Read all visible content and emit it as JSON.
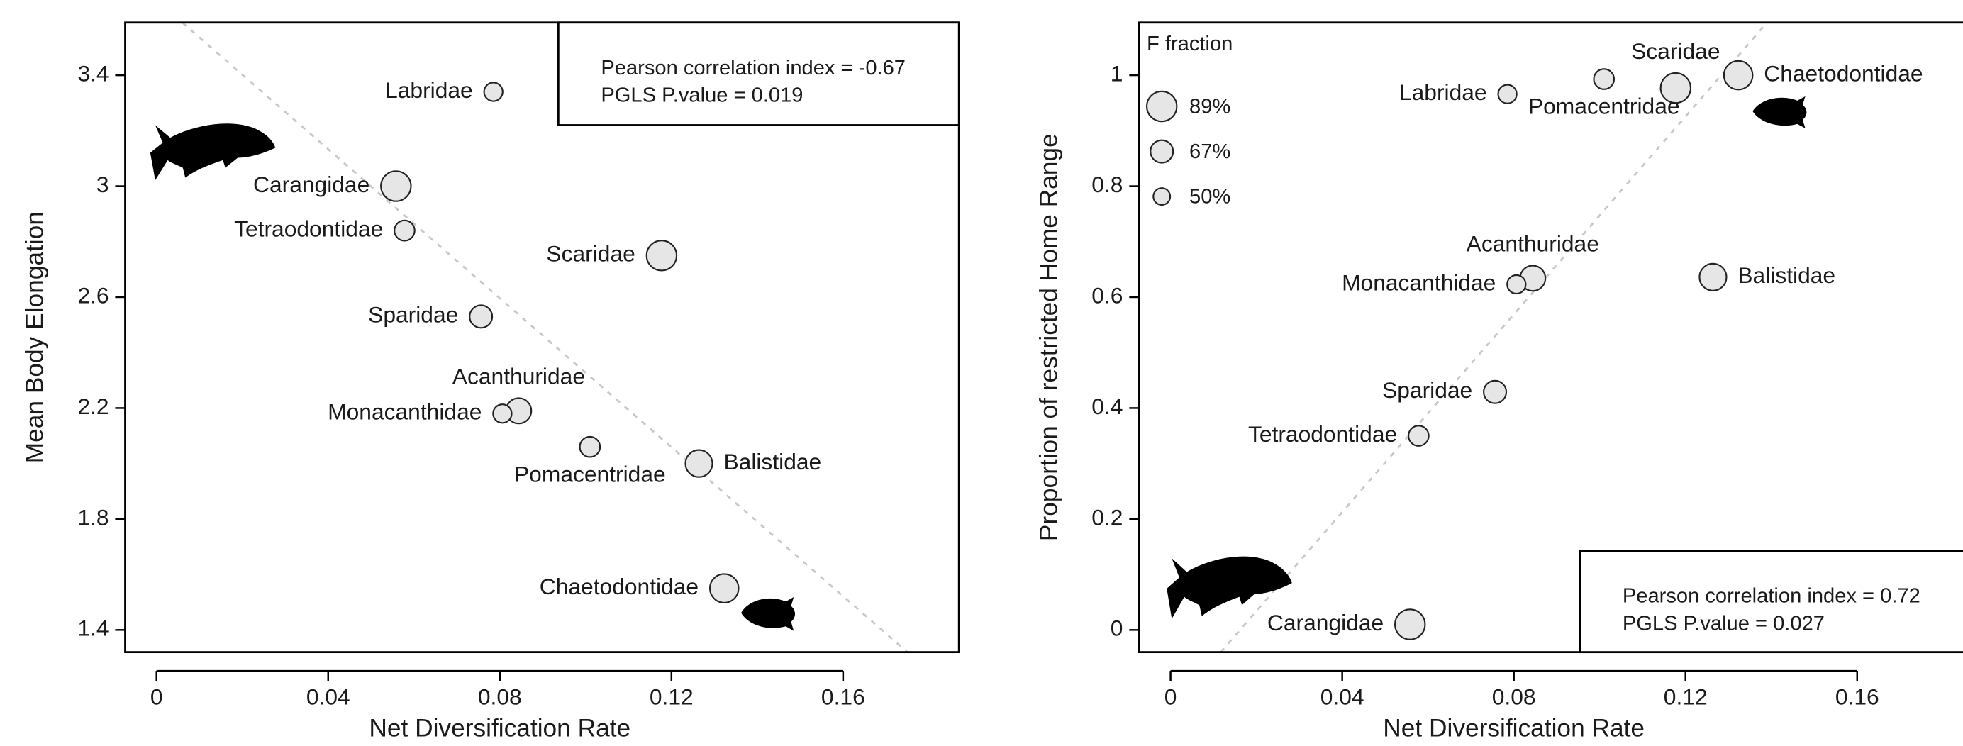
{
  "chart_data": [
    {
      "type": "scatter",
      "x_label": "Net Diversification Rate",
      "y_label": "Mean Body Elongation",
      "annotation": [
        "Pearson correlation index = -0.67",
        "PGLS P.value = 0.019"
      ],
      "categories": [
        "Labridae",
        "Carangidae",
        "Tetraodontidae",
        "Scaridae",
        "Sparidae",
        "Acanthuridae",
        "Monacanthidae",
        "Pomacentridae",
        "Balistidae",
        "Chaetodontidae"
      ],
      "x": [
        0.0785,
        0.0558,
        0.0578,
        0.1177,
        0.0756,
        0.0844,
        0.0806,
        0.101,
        0.1264,
        0.1323
      ],
      "values": [
        3.34,
        3.0,
        2.84,
        2.75,
        2.53,
        2.19,
        2.18,
        2.06,
        2.0,
        1.55
      ],
      "sizes": [
        55,
        89,
        60,
        89,
        67,
        75,
        55,
        60,
        80,
        85
      ],
      "trend_line": {
        "x": [
          0.006,
          0.175
        ],
        "y": [
          3.59,
          1.32
        ]
      },
      "color": "#e6e6e6",
      "xlim": [
        -0.0073,
        0.187
      ],
      "ylim": [
        1.32,
        3.59
      ],
      "xticks": [
        0,
        0.04,
        0.08,
        0.12,
        0.16
      ],
      "yticks": [
        1.4,
        1.8,
        2.2,
        2.6,
        3,
        3.4
      ]
    },
    {
      "type": "scatter",
      "x_label": "Net Diversification Rate",
      "y_label": "Proportion of restricted Home Range",
      "annotation": [
        "Pearson correlation index = 0.72",
        "PGLS P.value = 0.027"
      ],
      "categories": [
        "Labridae",
        "Carangidae",
        "Tetraodontidae",
        "Scaridae",
        "Sparidae",
        "Acanthuridae",
        "Monacanthidae",
        "Pomacentridae",
        "Balistidae",
        "Chaetodontidae"
      ],
      "x": [
        0.0785,
        0.0558,
        0.0578,
        0.1177,
        0.0756,
        0.0844,
        0.0806,
        0.101,
        0.1264,
        0.1323
      ],
      "values": [
        0.966,
        0.01,
        0.35,
        0.977,
        0.429,
        0.634,
        0.623,
        0.993,
        0.636,
        1.0
      ],
      "sizes": [
        55,
        89,
        60,
        89,
        67,
        75,
        55,
        60,
        80,
        85
      ],
      "trend_line": {
        "x": [
          0.0117,
          0.139
        ],
        "y": [
          -0.04,
          1.095
        ]
      },
      "color": "#e6e6e6",
      "size_legend": {
        "title": "F fraction",
        "values": [
          89,
          67,
          50
        ],
        "labels": [
          "89%",
          "67%",
          "50%"
        ]
      },
      "xlim": [
        -0.0073,
        0.187
      ],
      "ylim": [
        -0.04,
        1.095
      ],
      "xticks": [
        0,
        0.04,
        0.08,
        0.12,
        0.16
      ],
      "yticks": [
        0,
        0.2,
        0.4,
        0.6,
        0.8,
        1
      ]
    }
  ]
}
